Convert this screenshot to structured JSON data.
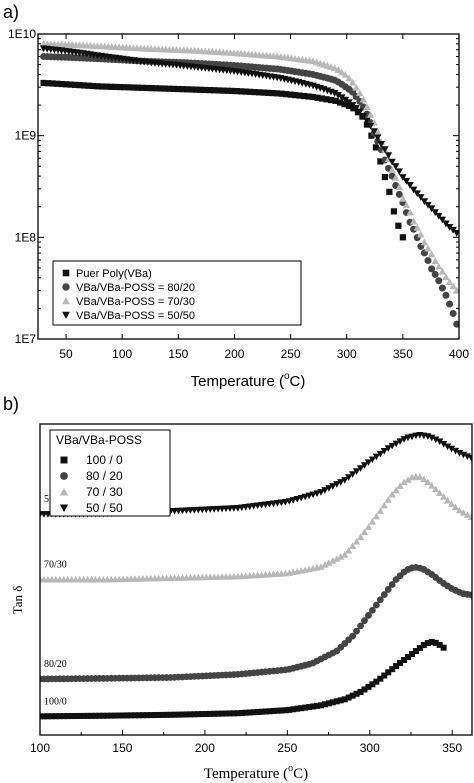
{
  "chart_data": [
    {
      "panel_label": "a)",
      "type": "scatter",
      "xlabel": "Temperature (",
      "xlabel_sup": "o",
      "xlabel_end": "C)",
      "ylabel": "",
      "xlim": [
        25,
        400
      ],
      "ylim": [
        10000000,
        10000000000
      ],
      "yscale": "log",
      "x_ticks": [
        50,
        100,
        150,
        200,
        250,
        300,
        350,
        400
      ],
      "y_ticks": [
        10000000,
        100000000,
        1000000000,
        10000000000
      ],
      "y_tick_labels": [
        "1E7",
        "1E8",
        "1E9",
        "1E10"
      ],
      "legend_position": "bottom-left",
      "colors": {
        "black": "#111111",
        "dark_gray": "#444444",
        "light_gray": "#b8b8b8"
      },
      "series": [
        {
          "name": "Puer Poly(VBa)",
          "marker": "square",
          "color": "#111111",
          "x": [
            30,
            50,
            80,
            120,
            160,
            200,
            240,
            270,
            290,
            305,
            315,
            322,
            328,
            333,
            338,
            342,
            346,
            350
          ],
          "y": [
            3300000000,
            3200000000,
            3050000000,
            2950000000,
            2850000000,
            2750000000,
            2600000000,
            2400000000,
            2200000000,
            1900000000,
            1500000000,
            1000000000,
            650000000,
            420000000,
            280000000,
            180000000,
            130000000,
            100000000
          ]
        },
        {
          "name": "VBa/VBa-POSS = 80/20",
          "marker": "circle",
          "color": "#444444",
          "x": [
            30,
            50,
            80,
            120,
            160,
            200,
            240,
            270,
            290,
            305,
            315,
            325,
            335,
            345,
            355,
            365,
            375,
            385,
            393,
            398
          ],
          "y": [
            6000000000,
            5900000000,
            5700000000,
            5400000000,
            5200000000,
            4900000000,
            4500000000,
            4000000000,
            3500000000,
            2700000000,
            1900000000,
            1000000000,
            530000000,
            290000000,
            150000000,
            85000000,
            50000000,
            32000000,
            20000000,
            14000000
          ]
        },
        {
          "name": "VBa/VBa-POSS = 70/30",
          "marker": "triangle-up",
          "color": "#b8b8b8",
          "x": [
            30,
            50,
            80,
            120,
            160,
            200,
            240,
            270,
            290,
            300,
            310,
            320,
            330,
            340,
            350,
            360,
            370,
            380,
            390,
            398
          ],
          "y": [
            8000000000,
            7900000000,
            7600000000,
            7200000000,
            6900000000,
            6500000000,
            6000000000,
            5400000000,
            4600000000,
            3900000000,
            2800000000,
            1700000000,
            900000000,
            470000000,
            240000000,
            140000000,
            85000000,
            55000000,
            38000000,
            30000000
          ]
        },
        {
          "name": "VBa/VBa-POSS = 50/50",
          "marker": "triangle-down",
          "color": "#111111",
          "x": [
            30,
            50,
            80,
            120,
            160,
            200,
            240,
            270,
            290,
            300,
            310,
            320,
            330,
            340,
            350,
            360,
            370,
            380,
            390,
            398
          ],
          "y": [
            7200000000,
            6800000000,
            6100000000,
            5300000000,
            4800000000,
            4300000000,
            3700000000,
            3100000000,
            2600000000,
            2200000000,
            1800000000,
            1300000000,
            850000000,
            560000000,
            390000000,
            290000000,
            220000000,
            170000000,
            130000000,
            110000000
          ]
        }
      ]
    },
    {
      "panel_label": "b)",
      "type": "scatter",
      "xlabel": "Temperature (",
      "xlabel_sup": "o",
      "xlabel_end": "C)",
      "ylabel": "Tan δ",
      "xlim": [
        100,
        362
      ],
      "ylim": [
        0,
        10
      ],
      "x_ticks": [
        100,
        150,
        200,
        250,
        300,
        350
      ],
      "legend_title": "VBa/VBa-POSS",
      "legend_position": "top-left",
      "series": [
        {
          "name": "100 / 0",
          "annotation": "100/0",
          "marker": "square",
          "color": "#111111",
          "x": [
            100,
            140,
            180,
            220,
            250,
            270,
            285,
            295,
            305,
            312,
            318,
            323,
            328,
            333,
            337,
            341,
            345
          ],
          "y": [
            0.6,
            0.62,
            0.65,
            0.7,
            0.8,
            0.95,
            1.15,
            1.4,
            1.75,
            2.05,
            2.3,
            2.5,
            2.7,
            2.9,
            3.0,
            2.95,
            2.8
          ]
        },
        {
          "name": "80 / 20",
          "annotation": "80/20",
          "marker": "circle",
          "color": "#444444",
          "x": [
            100,
            140,
            180,
            220,
            250,
            265,
            280,
            290,
            300,
            310,
            316,
            322,
            327,
            332,
            338,
            344,
            350,
            356,
            362
          ],
          "y": [
            1.8,
            1.82,
            1.85,
            1.95,
            2.1,
            2.3,
            2.7,
            3.2,
            3.9,
            4.6,
            5.0,
            5.3,
            5.4,
            5.35,
            5.15,
            4.9,
            4.7,
            4.55,
            4.5
          ]
        },
        {
          "name": "70 / 30",
          "annotation": "70/30",
          "marker": "triangle-up",
          "color": "#b8b8b8",
          "x": [
            100,
            140,
            180,
            220,
            250,
            270,
            285,
            295,
            305,
            313,
            320,
            326,
            331,
            336,
            342,
            348,
            355,
            362
          ],
          "y": [
            5.0,
            5.0,
            5.05,
            5.1,
            5.2,
            5.4,
            5.8,
            6.4,
            7.1,
            7.7,
            8.1,
            8.3,
            8.3,
            8.1,
            7.8,
            7.5,
            7.2,
            7.0
          ]
        },
        {
          "name": "50 / 50",
          "annotation": "50/50",
          "marker": "triangle-down",
          "color": "#111111",
          "x": [
            100,
            140,
            180,
            220,
            250,
            270,
            285,
            300,
            312,
            322,
            330,
            336,
            342,
            348,
            355,
            362
          ],
          "y": [
            7.1,
            7.12,
            7.2,
            7.3,
            7.5,
            7.8,
            8.2,
            8.8,
            9.25,
            9.55,
            9.65,
            9.6,
            9.45,
            9.25,
            9.05,
            8.9
          ]
        }
      ]
    }
  ]
}
